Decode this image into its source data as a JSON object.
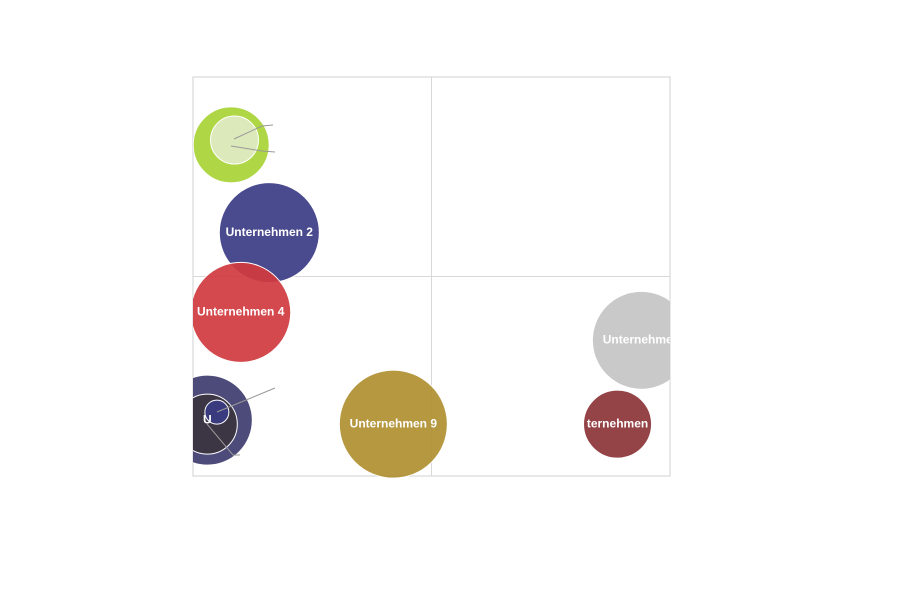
{
  "chart_data": {
    "type": "bubble",
    "xlim": [
      0,
      10
    ],
    "ylim": [
      0,
      10
    ],
    "points": [
      {
        "label": null,
        "color": "#a8d235",
        "x": 0.8,
        "y": 8.3,
        "size": 38
      },
      {
        "label": null,
        "color": "#dfeac4",
        "x": 0.87,
        "y": 8.42,
        "size": 24
      },
      {
        "label": "Unternehmen 2",
        "color": "#3b3b84",
        "x": 1.6,
        "y": 6.1,
        "size": 50
      },
      {
        "label": "Unternehmen 4",
        "color": "#d03a3e",
        "x": 1.0,
        "y": 4.1,
        "size": 50
      },
      {
        "label": "U",
        "color": "#3e3c6e",
        "x": 0.3,
        "y": 1.4,
        "size": 45
      },
      {
        "label": null,
        "color": "#3a3340",
        "x": 0.3,
        "y": 1.3,
        "size": 30
      },
      {
        "label": null,
        "color": "#3b3b84",
        "x": 0.5,
        "y": 1.6,
        "size": 12
      },
      {
        "label": "Unternehmen 9",
        "color": "#b08f31",
        "x": 4.2,
        "y": 1.3,
        "size": 54
      },
      {
        "label": "Unternehmen",
        "color": "#c4c4c6",
        "x": 9.4,
        "y": 3.4,
        "size": 49
      },
      {
        "label": "ternehmen",
        "color": "#8b3337",
        "x": 8.9,
        "y": 1.3,
        "size": 34
      }
    ]
  }
}
